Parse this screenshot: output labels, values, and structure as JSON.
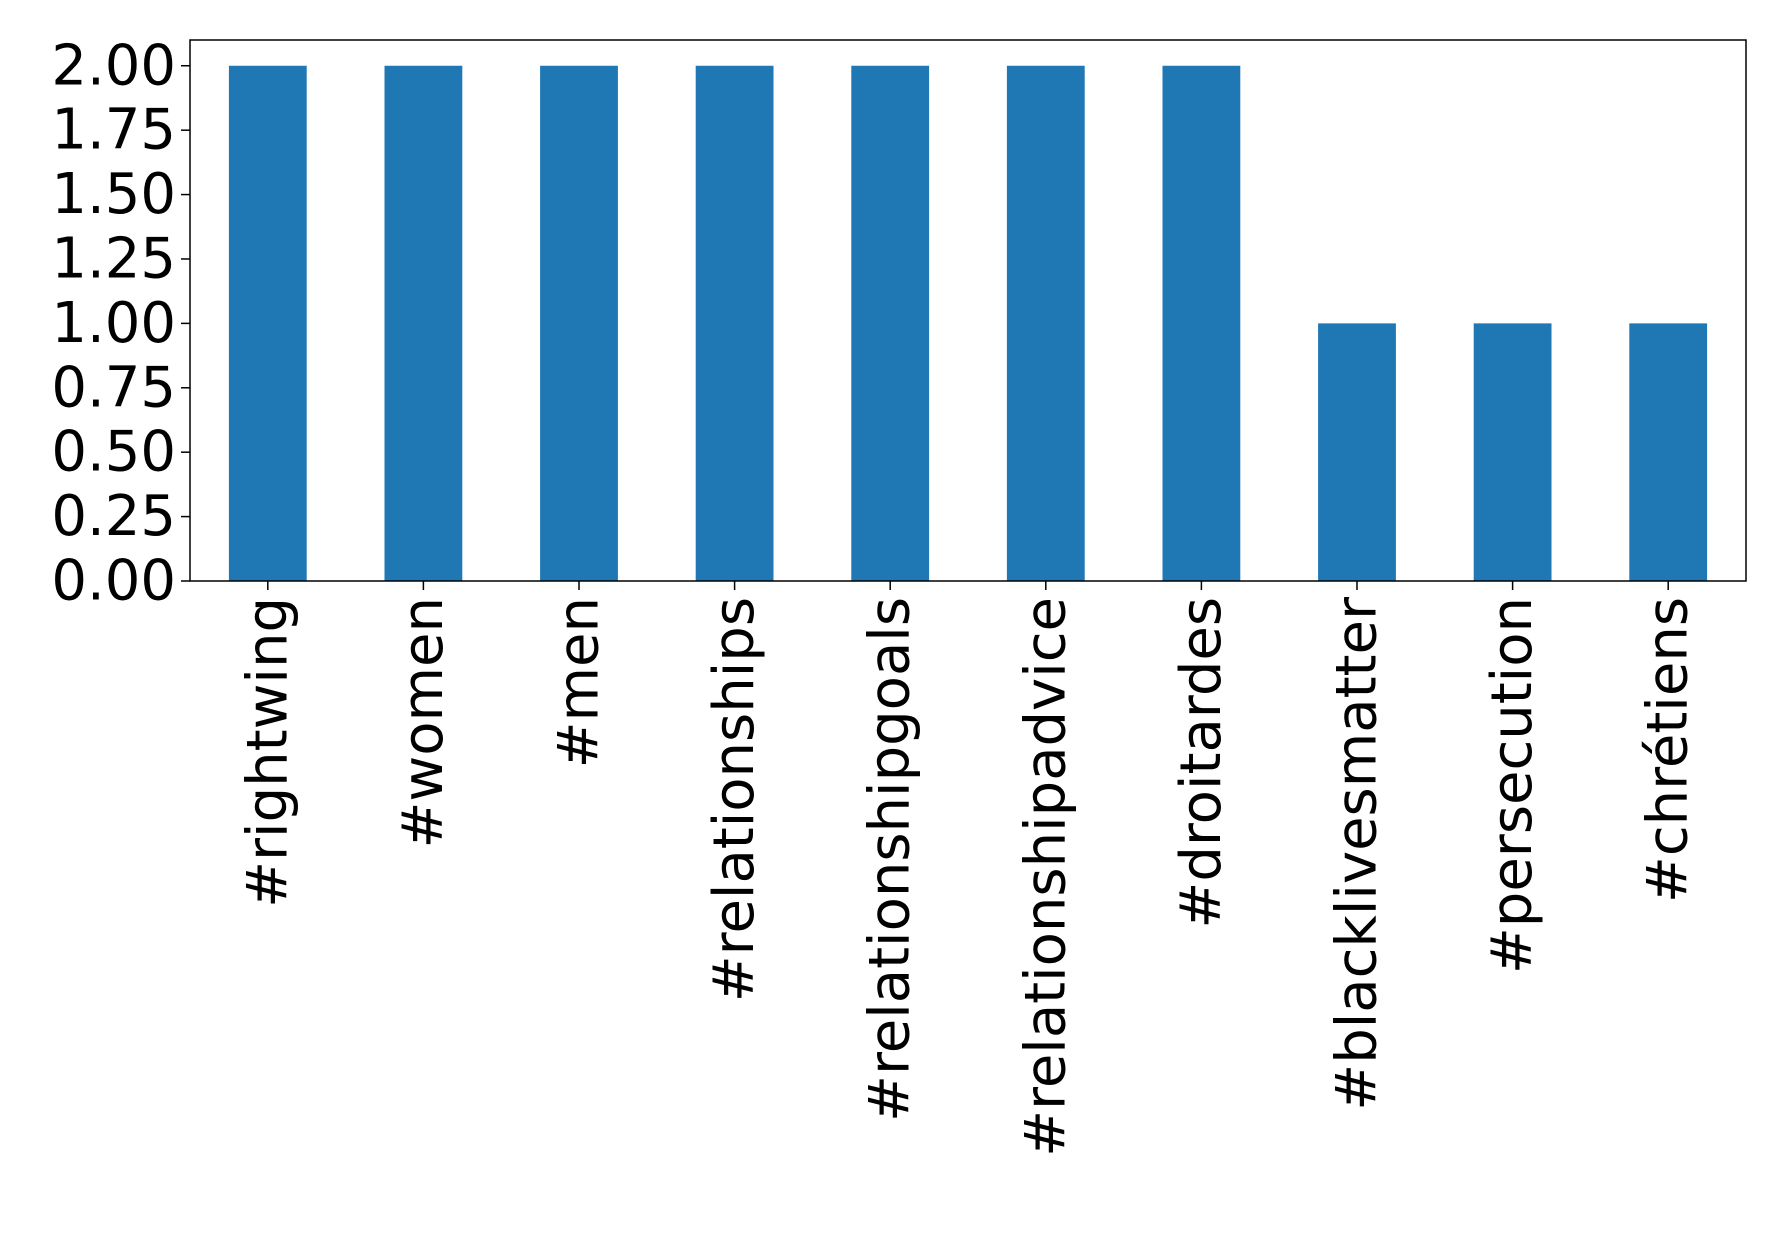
{
  "chart_data": {
    "type": "bar",
    "categories": [
      "#rightwing",
      "#women",
      "#men",
      "#relationships",
      "#relationshipgoals",
      "#relationshipadvice",
      "#droitardes",
      "#blacklivesmatter",
      "#persecution",
      "#chrétiens"
    ],
    "values": [
      2,
      2,
      2,
      2,
      2,
      2,
      2,
      1,
      1,
      1
    ],
    "ylim": [
      0,
      2.1
    ],
    "yticks": [
      "0.00",
      "0.25",
      "0.50",
      "0.75",
      "1.00",
      "1.25",
      "1.50",
      "1.75",
      "2.00"
    ],
    "ytick_values": [
      0,
      0.25,
      0.5,
      0.75,
      1.0,
      1.25,
      1.5,
      1.75,
      2.0
    ],
    "bar_color": "#1f77b4",
    "grid": false,
    "legend": "none"
  }
}
